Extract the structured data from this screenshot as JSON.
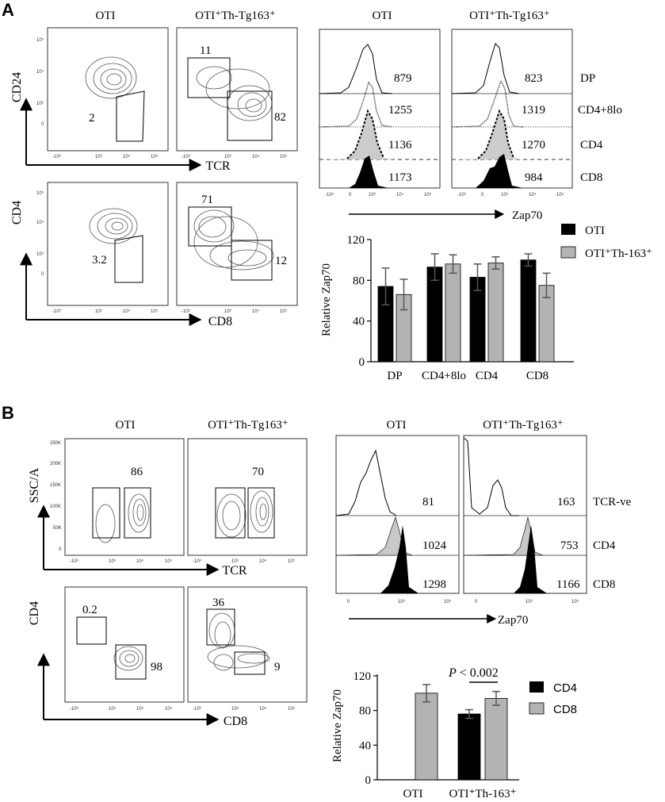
{
  "panelA": {
    "letter": "A",
    "col_oti": "OTI",
    "col_th": "OTI⁺Th-Tg163⁺",
    "flow": {
      "cd24_axis": "CD24",
      "tcr_axis": "TCR",
      "cd4_axis": "CD4",
      "cd8_axis": "CD8",
      "g_oti_tcr": "2",
      "g_th_tcr_hi": "11",
      "g_th_tcr_lo": "82",
      "g_oti_cd8": "3.2",
      "g_th_cd4": "71",
      "g_th_cd8": "12",
      "tick_neg": "-10³",
      "tick_0": "0",
      "tick_3": "10³",
      "tick_4": "10⁴",
      "tick_5": "10⁵"
    },
    "hist": {
      "axis": "Zap70",
      "rows": [
        "DP",
        "CD4+8lo",
        "CD4",
        "CD8"
      ],
      "oti_values": [
        "879",
        "1255",
        "1136",
        "1173"
      ],
      "th_values": [
        "823",
        "1319",
        "1270",
        "984"
      ]
    },
    "bar": {
      "ylabel": "Relative Zap70",
      "legend": [
        "OTI",
        "OTI⁺Th-163⁺"
      ],
      "yticks": [
        "0",
        "40",
        "80",
        "120"
      ]
    }
  },
  "panelB": {
    "letter": "B",
    "col_oti": "OTI",
    "col_th": "OTI⁺Th-Tg163⁺",
    "flow": {
      "ssc_axis": "SSC/A",
      "tcr_axis": "TCR",
      "cd4_axis": "CD4",
      "cd8_axis": "CD8",
      "g_oti_tcr": "86",
      "g_th_tcr": "70",
      "g_oti_cd4": "0.2",
      "g_oti_cd8": "98",
      "g_th_cd4": "36",
      "g_th_cd8": "9",
      "ssc_ticks": [
        "250K",
        "200K",
        "150K",
        "100K",
        "50K",
        "0"
      ]
    },
    "hist": {
      "axis": "Zap70",
      "rows": [
        "TCR-ve",
        "CD4",
        "CD8"
      ],
      "oti_values": [
        "81",
        "1024",
        "1298"
      ],
      "th_values": [
        "163",
        "753",
        "1166"
      ]
    },
    "bar": {
      "ylabel": "Relative Zap70",
      "pvalue_p": "P",
      "pvalue_rest": " < 0.002",
      "legend": [
        "CD4",
        "CD8"
      ],
      "yticks": [
        "0",
        "40",
        "80",
        "120"
      ],
      "categories": [
        "OTI",
        "OTI⁺Th-163⁺"
      ]
    }
  },
  "chart_data": [
    {
      "type": "bar",
      "title": "",
      "xlabel": "",
      "ylabel": "Relative Zap70",
      "categories": [
        "DP",
        "CD4+8lo",
        "CD4",
        "CD8"
      ],
      "ylim": [
        0,
        120
      ],
      "series": [
        {
          "name": "OTI",
          "color": "#000000",
          "values": [
            74,
            93,
            83,
            100
          ],
          "errors": [
            18,
            13,
            13,
            6
          ]
        },
        {
          "name": "OTI⁺Th-163⁺",
          "color": "#b3b3b3",
          "values": [
            66,
            96,
            97,
            75
          ],
          "errors": [
            15,
            9,
            6,
            12
          ]
        }
      ]
    },
    {
      "type": "bar",
      "title": "",
      "xlabel": "",
      "ylabel": "Relative Zap70",
      "categories": [
        "OTI",
        "OTI⁺Th-163⁺"
      ],
      "ylim": [
        0,
        120
      ],
      "annotation": "P < 0.002",
      "series": [
        {
          "name": "CD4",
          "color": "#000000",
          "values": [
            null,
            76
          ],
          "errors": [
            null,
            5
          ]
        },
        {
          "name": "CD8",
          "color": "#b3b3b3",
          "values": [
            100,
            94
          ],
          "errors": [
            10,
            8
          ]
        }
      ]
    }
  ]
}
